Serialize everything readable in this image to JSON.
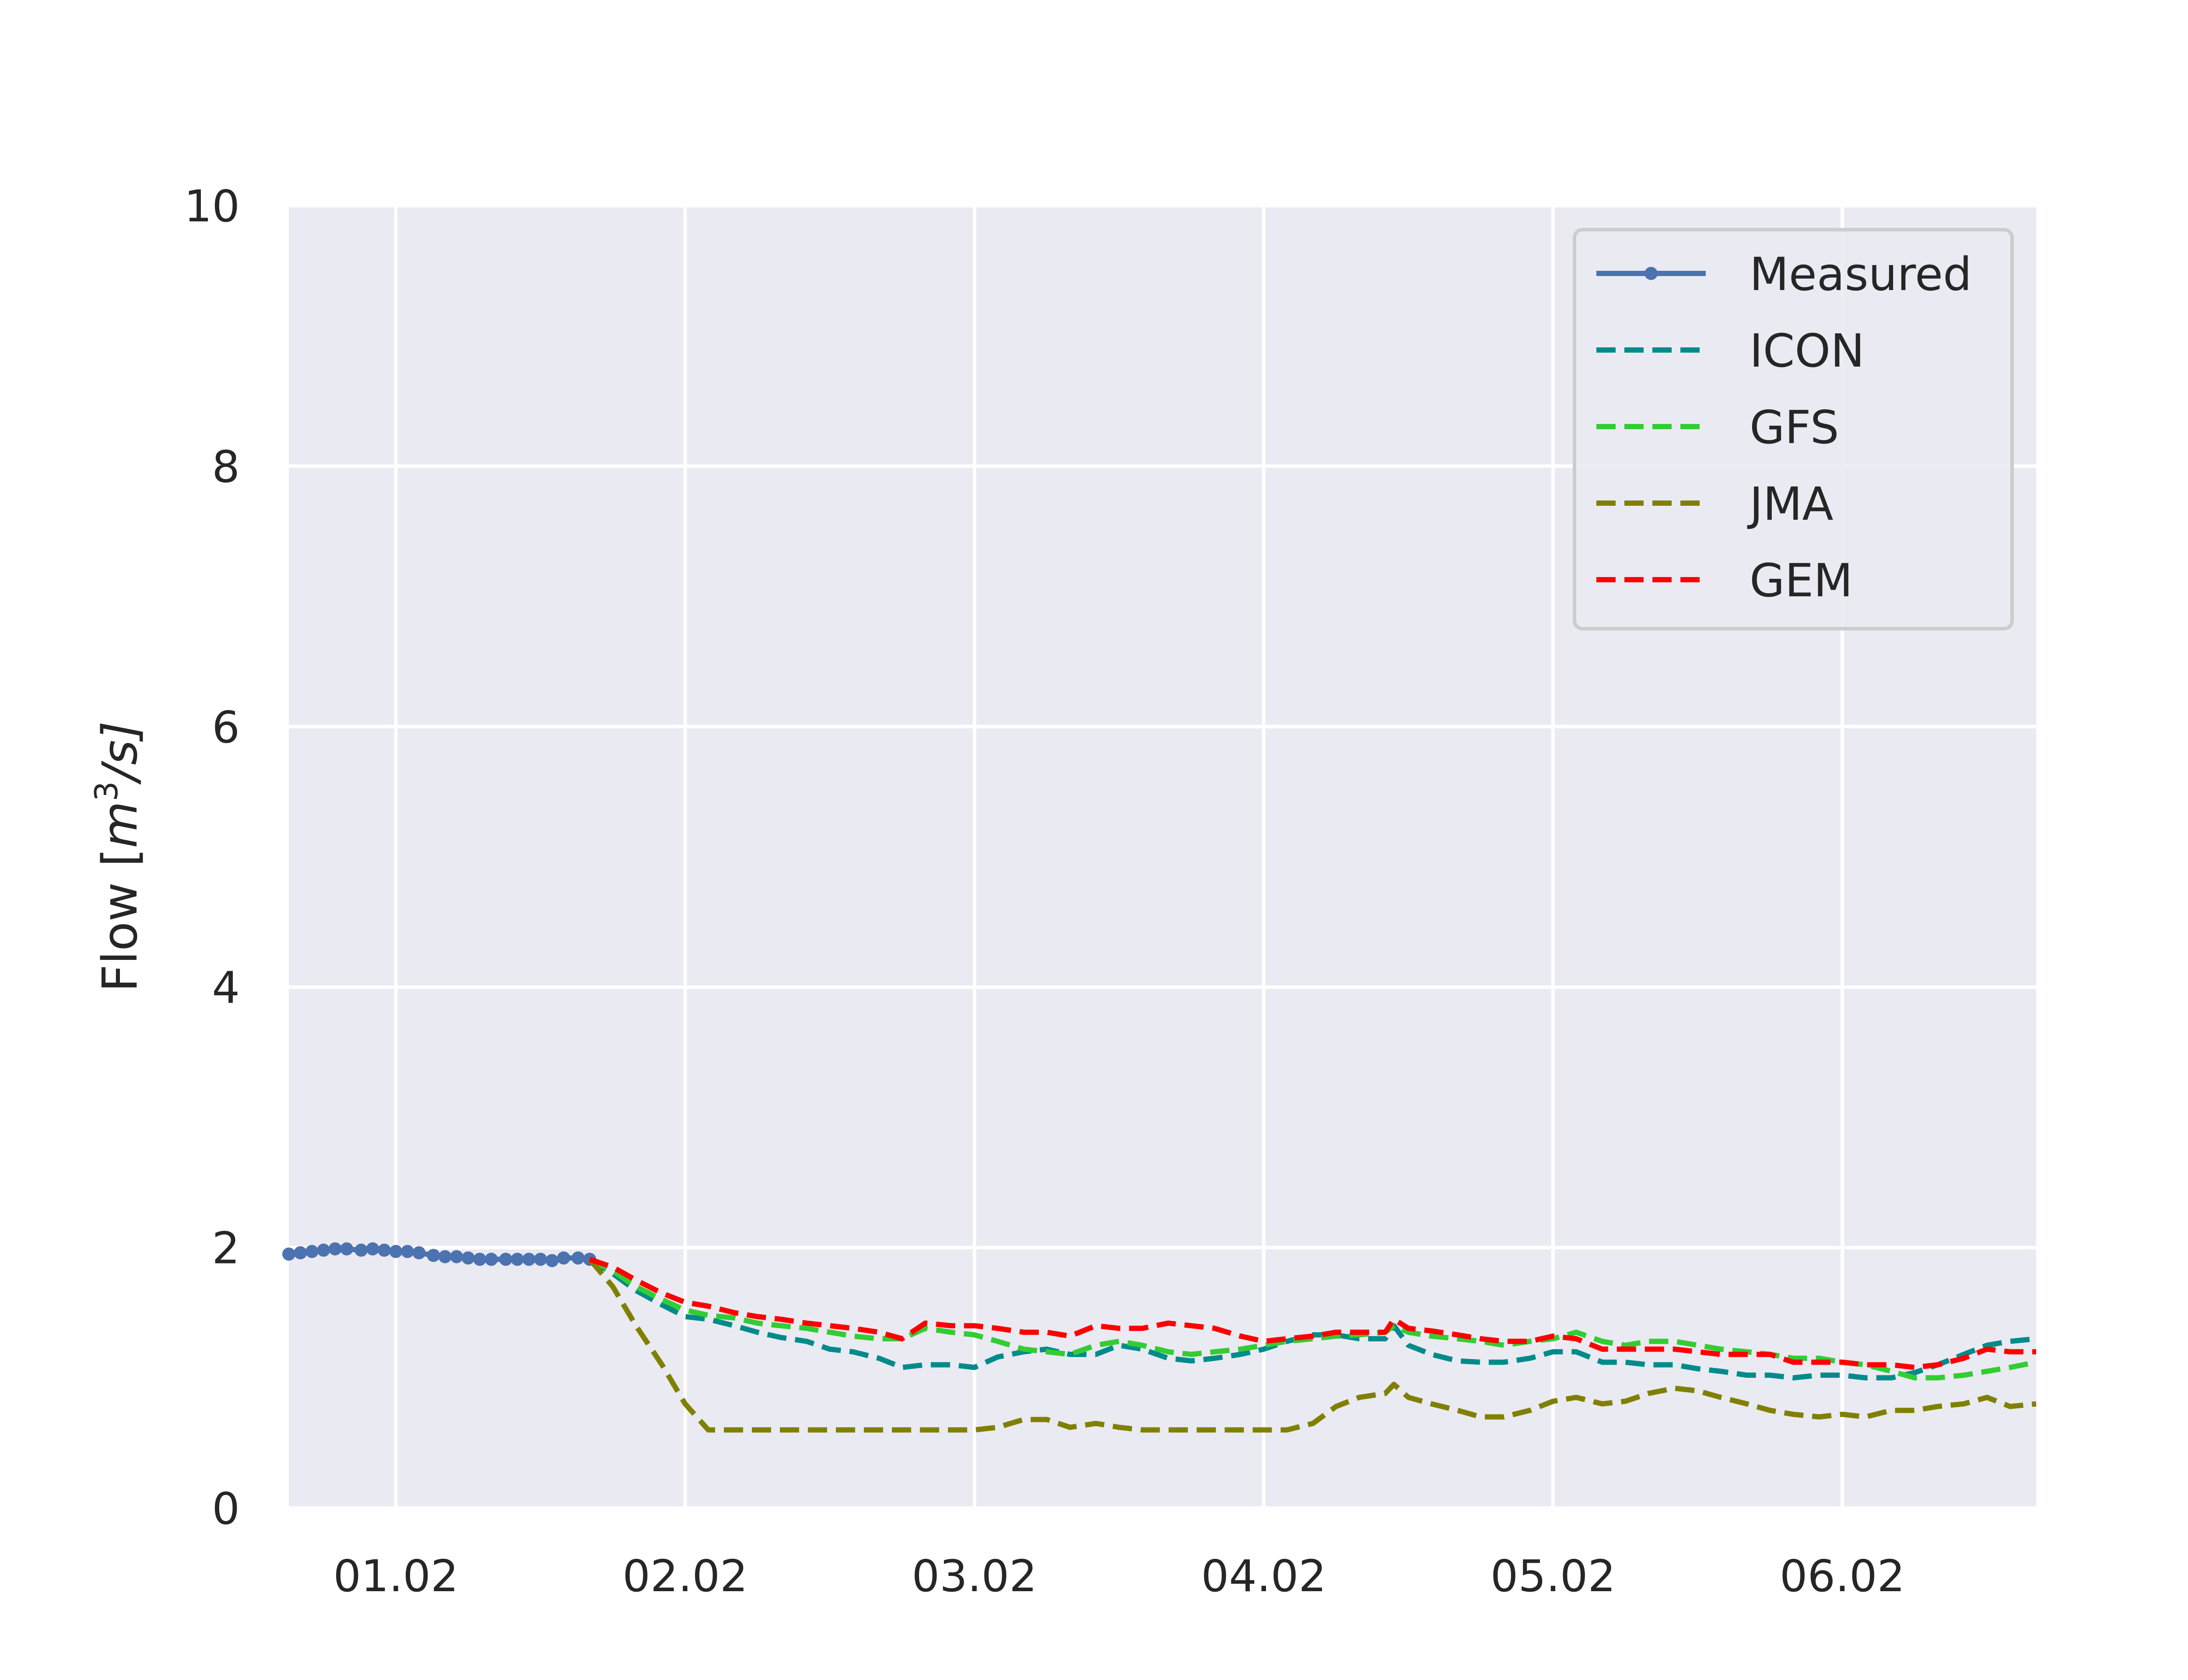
{
  "chart_data": {
    "type": "line",
    "title": "",
    "xlabel": "",
    "ylabel_parts": {
      "prefix": "Flow [",
      "base": "m",
      "sup": "3",
      "suffix": "/s]"
    },
    "x_range_days": [
      0.63,
      6.67
    ],
    "ylim": [
      0,
      10
    ],
    "y_ticks": [
      0,
      2,
      4,
      6,
      8,
      10
    ],
    "y_tick_labels": [
      "0",
      "2",
      "4",
      "6",
      "8",
      "10"
    ],
    "x_ticks": [
      1,
      2,
      3,
      4,
      5,
      6
    ],
    "x_tick_labels": [
      "01.02",
      "02.02",
      "03.02",
      "04.02",
      "05.02",
      "06.02"
    ],
    "x_unit_note": "x values are day-of-month (February); 1.5 = 01.02 12:00",
    "grid": true,
    "legend_position": "upper-right",
    "series": [
      {
        "name": "Measured",
        "color": "#4c72b0",
        "style": "solid-markers",
        "x": [
          0.63,
          0.67,
          0.71,
          0.75,
          0.79,
          0.83,
          0.88,
          0.92,
          0.96,
          1.0,
          1.04,
          1.08,
          1.13,
          1.17,
          1.21,
          1.25,
          1.29,
          1.33,
          1.38,
          1.42,
          1.46,
          1.5,
          1.54,
          1.58,
          1.63,
          1.67
        ],
        "y": [
          1.95,
          1.96,
          1.97,
          1.98,
          1.99,
          1.99,
          1.98,
          1.99,
          1.98,
          1.97,
          1.97,
          1.96,
          1.94,
          1.93,
          1.93,
          1.92,
          1.91,
          1.91,
          1.91,
          1.91,
          1.91,
          1.91,
          1.9,
          1.92,
          1.92,
          1.91
        ]
      },
      {
        "name": "ICON",
        "color": "#008b8b",
        "style": "dashed",
        "x": [
          1.67,
          1.75,
          1.83,
          1.92,
          2.0,
          2.08,
          2.17,
          2.25,
          2.33,
          2.42,
          2.5,
          2.58,
          2.67,
          2.75,
          2.83,
          2.92,
          3.0,
          3.08,
          3.17,
          3.25,
          3.33,
          3.42,
          3.5,
          3.58,
          3.67,
          3.75,
          3.83,
          3.92,
          4.0,
          4.08,
          4.17,
          4.25,
          4.33,
          4.42,
          4.45,
          4.5,
          4.58,
          4.67,
          4.75,
          4.83,
          4.92,
          5.0,
          5.08,
          5.17,
          5.25,
          5.33,
          5.42,
          5.5,
          5.58,
          5.67,
          5.75,
          5.83,
          5.92,
          6.0,
          6.08,
          6.17,
          6.25,
          6.33,
          6.42,
          6.5,
          6.58,
          6.67
        ],
        "y": [
          1.91,
          1.8,
          1.67,
          1.56,
          1.47,
          1.45,
          1.4,
          1.35,
          1.31,
          1.28,
          1.22,
          1.2,
          1.15,
          1.08,
          1.1,
          1.1,
          1.08,
          1.16,
          1.2,
          1.22,
          1.18,
          1.18,
          1.25,
          1.22,
          1.15,
          1.13,
          1.15,
          1.18,
          1.22,
          1.28,
          1.33,
          1.33,
          1.3,
          1.3,
          1.4,
          1.25,
          1.18,
          1.13,
          1.12,
          1.12,
          1.15,
          1.2,
          1.2,
          1.12,
          1.12,
          1.1,
          1.1,
          1.07,
          1.05,
          1.02,
          1.02,
          1.0,
          1.02,
          1.02,
          1.0,
          1.0,
          1.04,
          1.1,
          1.18,
          1.25,
          1.28,
          1.3
        ]
      },
      {
        "name": "GFS",
        "color": "#32cd32",
        "style": "dashed",
        "x": [
          1.67,
          1.75,
          1.83,
          1.92,
          2.0,
          2.08,
          2.17,
          2.25,
          2.33,
          2.42,
          2.5,
          2.58,
          2.67,
          2.75,
          2.83,
          2.92,
          3.0,
          3.08,
          3.17,
          3.25,
          3.33,
          3.42,
          3.5,
          3.58,
          3.67,
          3.75,
          3.83,
          3.92,
          4.0,
          4.08,
          4.17,
          4.25,
          4.33,
          4.42,
          4.45,
          4.5,
          4.58,
          4.67,
          4.75,
          4.83,
          4.92,
          5.0,
          5.08,
          5.17,
          5.25,
          5.33,
          5.42,
          5.5,
          5.58,
          5.67,
          5.75,
          5.83,
          5.92,
          6.0,
          6.08,
          6.17,
          6.25,
          6.33,
          6.42,
          6.5,
          6.58,
          6.67
        ],
        "y": [
          1.91,
          1.82,
          1.7,
          1.6,
          1.52,
          1.48,
          1.46,
          1.42,
          1.4,
          1.38,
          1.35,
          1.32,
          1.3,
          1.3,
          1.38,
          1.35,
          1.33,
          1.28,
          1.22,
          1.2,
          1.18,
          1.25,
          1.28,
          1.25,
          1.2,
          1.18,
          1.2,
          1.22,
          1.25,
          1.28,
          1.3,
          1.32,
          1.33,
          1.35,
          1.4,
          1.35,
          1.32,
          1.3,
          1.28,
          1.25,
          1.28,
          1.3,
          1.35,
          1.28,
          1.25,
          1.28,
          1.28,
          1.25,
          1.22,
          1.2,
          1.18,
          1.15,
          1.15,
          1.12,
          1.1,
          1.05,
          1.0,
          1.0,
          1.02,
          1.05,
          1.08,
          1.12
        ]
      },
      {
        "name": "JMA",
        "color": "#808000",
        "style": "dashed",
        "x": [
          1.67,
          1.75,
          1.83,
          1.92,
          2.0,
          2.08,
          2.17,
          2.25,
          2.33,
          2.42,
          2.5,
          2.58,
          2.67,
          2.75,
          2.83,
          2.92,
          3.0,
          3.08,
          3.17,
          3.25,
          3.33,
          3.42,
          3.5,
          3.58,
          3.67,
          3.75,
          3.83,
          3.92,
          4.0,
          4.08,
          4.17,
          4.25,
          4.33,
          4.42,
          4.45,
          4.5,
          4.58,
          4.67,
          4.75,
          4.83,
          4.92,
          5.0,
          5.08,
          5.17,
          5.25,
          5.33,
          5.42,
          5.5,
          5.58,
          5.67,
          5.75,
          5.83,
          5.92,
          6.0,
          6.08,
          6.17,
          6.25,
          6.33,
          6.42,
          6.5,
          6.58,
          6.67
        ],
        "y": [
          1.91,
          1.7,
          1.4,
          1.1,
          0.8,
          0.6,
          0.6,
          0.6,
          0.6,
          0.6,
          0.6,
          0.6,
          0.6,
          0.6,
          0.6,
          0.6,
          0.6,
          0.62,
          0.68,
          0.68,
          0.62,
          0.65,
          0.62,
          0.6,
          0.6,
          0.6,
          0.6,
          0.6,
          0.6,
          0.6,
          0.65,
          0.78,
          0.85,
          0.88,
          0.95,
          0.85,
          0.8,
          0.75,
          0.7,
          0.7,
          0.75,
          0.82,
          0.85,
          0.8,
          0.82,
          0.88,
          0.92,
          0.9,
          0.85,
          0.8,
          0.75,
          0.72,
          0.7,
          0.72,
          0.7,
          0.75,
          0.75,
          0.78,
          0.8,
          0.85,
          0.78,
          0.8
        ]
      },
      {
        "name": "GEM",
        "color": "#ff0000",
        "style": "dashed",
        "x": [
          1.67,
          1.75,
          1.83,
          1.92,
          2.0,
          2.08,
          2.17,
          2.25,
          2.33,
          2.42,
          2.5,
          2.58,
          2.67,
          2.75,
          2.83,
          2.92,
          3.0,
          3.08,
          3.17,
          3.25,
          3.33,
          3.42,
          3.5,
          3.58,
          3.67,
          3.75,
          3.83,
          3.92,
          4.0,
          4.08,
          4.17,
          4.25,
          4.33,
          4.42,
          4.45,
          4.5,
          4.58,
          4.67,
          4.75,
          4.83,
          4.92,
          5.0,
          5.08,
          5.17,
          5.25,
          5.33,
          5.42,
          5.5,
          5.58,
          5.67,
          5.75,
          5.83,
          5.92,
          6.0,
          6.08,
          6.17,
          6.25,
          6.33,
          6.42,
          6.5,
          6.58,
          6.67
        ],
        "y": [
          1.91,
          1.85,
          1.75,
          1.65,
          1.58,
          1.55,
          1.5,
          1.47,
          1.45,
          1.42,
          1.4,
          1.38,
          1.35,
          1.3,
          1.42,
          1.4,
          1.4,
          1.38,
          1.35,
          1.35,
          1.32,
          1.4,
          1.38,
          1.38,
          1.42,
          1.4,
          1.38,
          1.32,
          1.28,
          1.3,
          1.32,
          1.35,
          1.35,
          1.35,
          1.45,
          1.38,
          1.36,
          1.33,
          1.3,
          1.28,
          1.28,
          1.32,
          1.3,
          1.22,
          1.22,
          1.22,
          1.22,
          1.2,
          1.18,
          1.18,
          1.18,
          1.12,
          1.12,
          1.12,
          1.1,
          1.1,
          1.08,
          1.1,
          1.15,
          1.22,
          1.2,
          1.2
        ]
      }
    ]
  }
}
